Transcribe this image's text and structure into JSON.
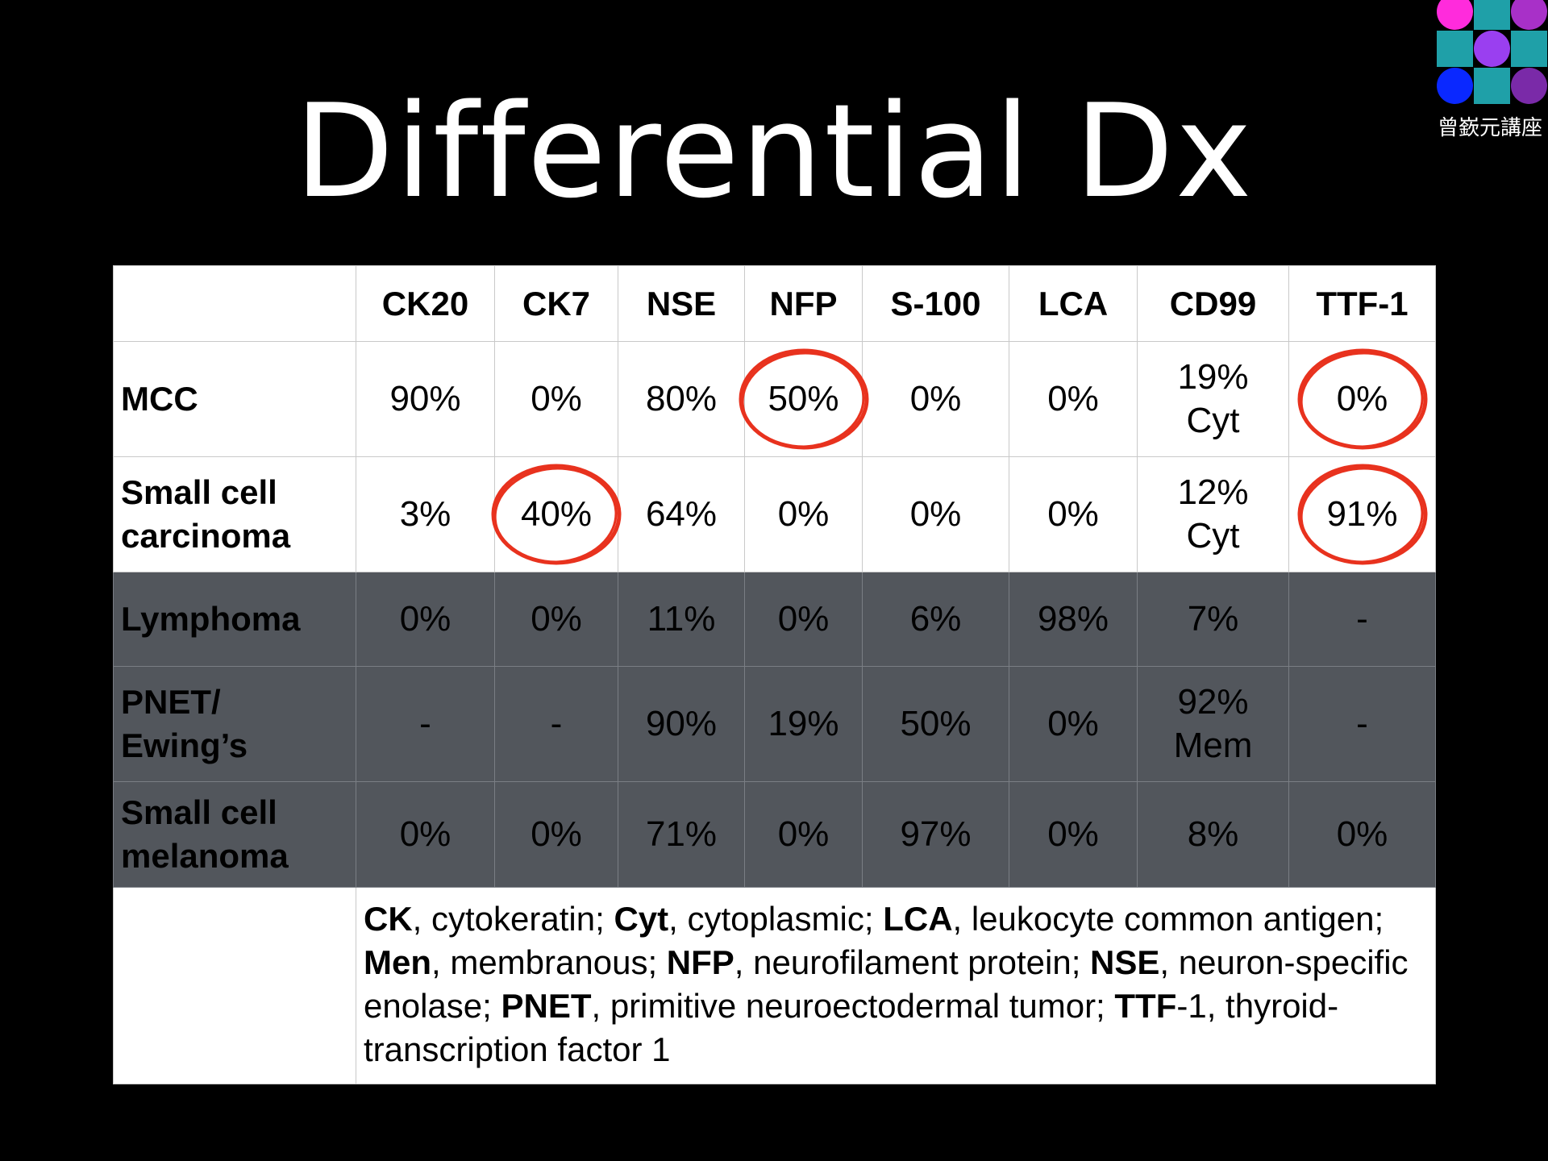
{
  "title": "Differential Dx",
  "logo": {
    "caption": "曾嶔元講座",
    "tile_colors": [
      "#ff2bdc",
      "#1fa0a8",
      "#a830c8",
      "#1fa0a8",
      "#9a3ff0",
      "#1fa0a8",
      "#0a28ff",
      "#1fa0a8",
      "#7a2aa8"
    ]
  },
  "table": {
    "columns": [
      "CK20",
      "CK7",
      "NSE",
      "NFP",
      "S-100",
      "LCA",
      "CD99",
      "TTF-1"
    ],
    "rows": [
      {
        "label": [
          "MCC"
        ],
        "shade": "light",
        "cells": [
          [
            "90%"
          ],
          [
            "0%"
          ],
          [
            "80%"
          ],
          [
            "50%"
          ],
          [
            "0%"
          ],
          [
            "0%"
          ],
          [
            "19%",
            "Cyt"
          ],
          [
            "0%"
          ]
        ],
        "circled": [
          false,
          false,
          false,
          true,
          false,
          false,
          false,
          true
        ]
      },
      {
        "label": [
          "Small cell",
          "carcinoma"
        ],
        "shade": "light",
        "cells": [
          [
            "3%"
          ],
          [
            "40%"
          ],
          [
            "64%"
          ],
          [
            "0%"
          ],
          [
            "0%"
          ],
          [
            "0%"
          ],
          [
            "12%",
            "Cyt"
          ],
          [
            "91%"
          ]
        ],
        "circled": [
          false,
          true,
          false,
          false,
          false,
          false,
          false,
          true
        ]
      },
      {
        "label": [
          "Lymphoma"
        ],
        "shade": "dark",
        "cells": [
          [
            "0%"
          ],
          [
            "0%"
          ],
          [
            "11%"
          ],
          [
            "0%"
          ],
          [
            "6%"
          ],
          [
            "98%"
          ],
          [
            "7%"
          ],
          [
            "-"
          ]
        ],
        "circled": [
          false,
          false,
          false,
          false,
          false,
          false,
          false,
          false
        ]
      },
      {
        "label": [
          "PNET/",
          "Ewing’s"
        ],
        "shade": "dark",
        "cells": [
          [
            "-"
          ],
          [
            "-"
          ],
          [
            "90%"
          ],
          [
            "19%"
          ],
          [
            "50%"
          ],
          [
            "0%"
          ],
          [
            "92%",
            "Mem"
          ],
          [
            "-"
          ]
        ],
        "circled": [
          false,
          false,
          false,
          false,
          false,
          false,
          false,
          false
        ]
      },
      {
        "label": [
          "Small cell",
          "melanoma"
        ],
        "shade": "dark",
        "cells": [
          [
            "0%"
          ],
          [
            "0%"
          ],
          [
            "71%"
          ],
          [
            "0%"
          ],
          [
            "97%"
          ],
          [
            "0%"
          ],
          [
            "8%"
          ],
          [
            "0%"
          ]
        ],
        "circled": [
          false,
          false,
          false,
          false,
          false,
          false,
          false,
          false
        ]
      }
    ],
    "annotation_color": "#e8321e",
    "footnote": [
      {
        "term": "CK",
        "def": ", cytokeratin; "
      },
      {
        "term": "Cyt",
        "def": ", cytoplasmic; "
      },
      {
        "term": "LCA",
        "def": ", leukocyte common antigen; "
      },
      {
        "term": "Men",
        "def": ", membranous; "
      },
      {
        "term": "NFP",
        "def": ", neurofilament protein; "
      },
      {
        "term": "NSE",
        "def": ", neuron-specific enolase; "
      },
      {
        "term": "PNET",
        "def": ", primitive neuroectodermal tumor; "
      },
      {
        "term": "TTF",
        "def": "-1, thyroid-transcription factor 1"
      }
    ]
  }
}
